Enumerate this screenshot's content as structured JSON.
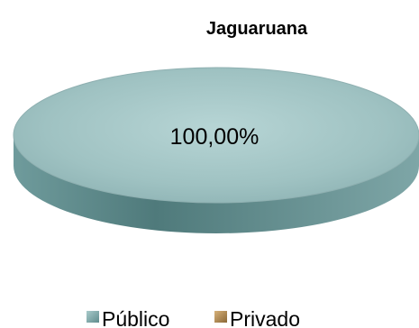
{
  "chart_data": {
    "type": "pie",
    "title": "Jaguaruana",
    "categories": [
      "Público",
      "Privado"
    ],
    "values": [
      100.0,
      0.0
    ],
    "data_labels": [
      "100,00%"
    ],
    "legend": {
      "placement": "bottom",
      "entries": [
        {
          "label": "Público",
          "color": "#6f9fa0"
        },
        {
          "label": "Privado",
          "color": "#b08a58"
        }
      ]
    },
    "style": "3d-pie"
  },
  "colors": {
    "publico_top": "#a9cbcb",
    "publico_side": "#5f8c8d",
    "privado": "#b08a58"
  }
}
